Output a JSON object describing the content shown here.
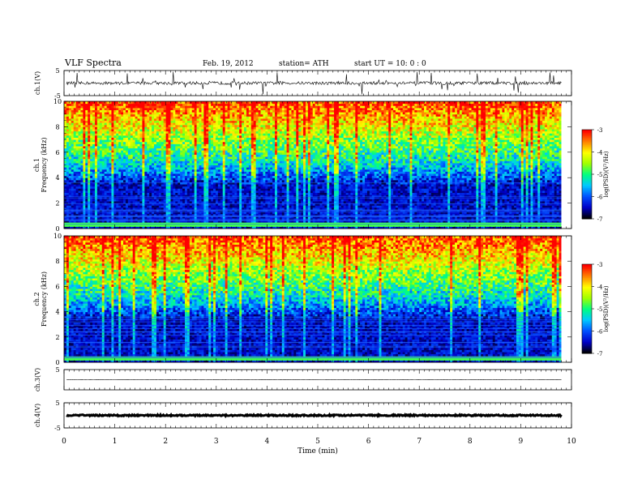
{
  "header": {
    "title": "VLF  Spectra",
    "date": "Feb. 19, 2012",
    "station": "station= ATH",
    "start": "start  UT =   10: 0  : 0"
  },
  "colors": {
    "spectrogram_scale": [
      "#000000",
      "#0000c8",
      "#0050ff",
      "#00c8ff",
      "#00ff80",
      "#a0ff00",
      "#ffff00",
      "#ff8000",
      "#ff0000",
      "#ffffff"
    ]
  },
  "chart_data": [
    {
      "type": "line",
      "panel": "ch1-waveform",
      "ylabel": "ch.1(V)",
      "ylim": [
        -5,
        5
      ],
      "y_ticks": [
        "5",
        "-5"
      ],
      "x_range": [
        0,
        10
      ],
      "series": [
        {
          "values_description_level": 0
        }
      ]
    },
    {
      "type": "heatmap",
      "panel": "ch1-spectrogram",
      "ylabel": "ch.1\nFrequency  (kHz)",
      "ylim": [
        0,
        10
      ],
      "y_ticks": [
        "0",
        "2",
        "4",
        "6",
        "8",
        "10"
      ],
      "x_range": [
        0,
        9.8
      ],
      "colorbar": {
        "label": "log(PSD)(V²/Hz)",
        "range": [
          -7,
          -3
        ],
        "ticks": [
          "-3",
          "-4",
          "-5",
          "-6",
          "-7"
        ]
      }
    },
    {
      "type": "heatmap",
      "panel": "ch2-spectrogram",
      "ylabel": "ch.2\nFrequency  (kHz)",
      "ylim": [
        0,
        10
      ],
      "y_ticks": [
        "0",
        "2",
        "4",
        "6",
        "8",
        "10"
      ],
      "x_range": [
        0,
        9.8
      ],
      "colorbar": {
        "label": "log(PSD)(V²/Hz)",
        "range": [
          -7,
          -3
        ],
        "ticks": [
          "-3",
          "-4",
          "-5",
          "-6",
          "-7"
        ]
      }
    },
    {
      "type": "line",
      "panel": "ch3-waveform",
      "ylabel": "ch.3(V)",
      "ylim": [
        -5,
        5
      ],
      "y_ticks": [
        "5"
      ],
      "x_range": [
        0,
        10
      ],
      "series": [
        {
          "level": 0
        }
      ]
    },
    {
      "type": "line",
      "panel": "ch4-waveform",
      "ylabel": "ch.4(V)",
      "ylim": [
        -5,
        5
      ],
      "y_ticks": [
        "5",
        "-5"
      ],
      "x_range": [
        0,
        10
      ],
      "series": [
        {
          "level": 0
        }
      ]
    }
  ],
  "x_axis": {
    "label": "Time  (min)",
    "range": [
      0,
      10
    ],
    "ticks": [
      "0",
      "1",
      "2",
      "3",
      "4",
      "5",
      "6",
      "7",
      "8",
      "9",
      "10"
    ]
  }
}
